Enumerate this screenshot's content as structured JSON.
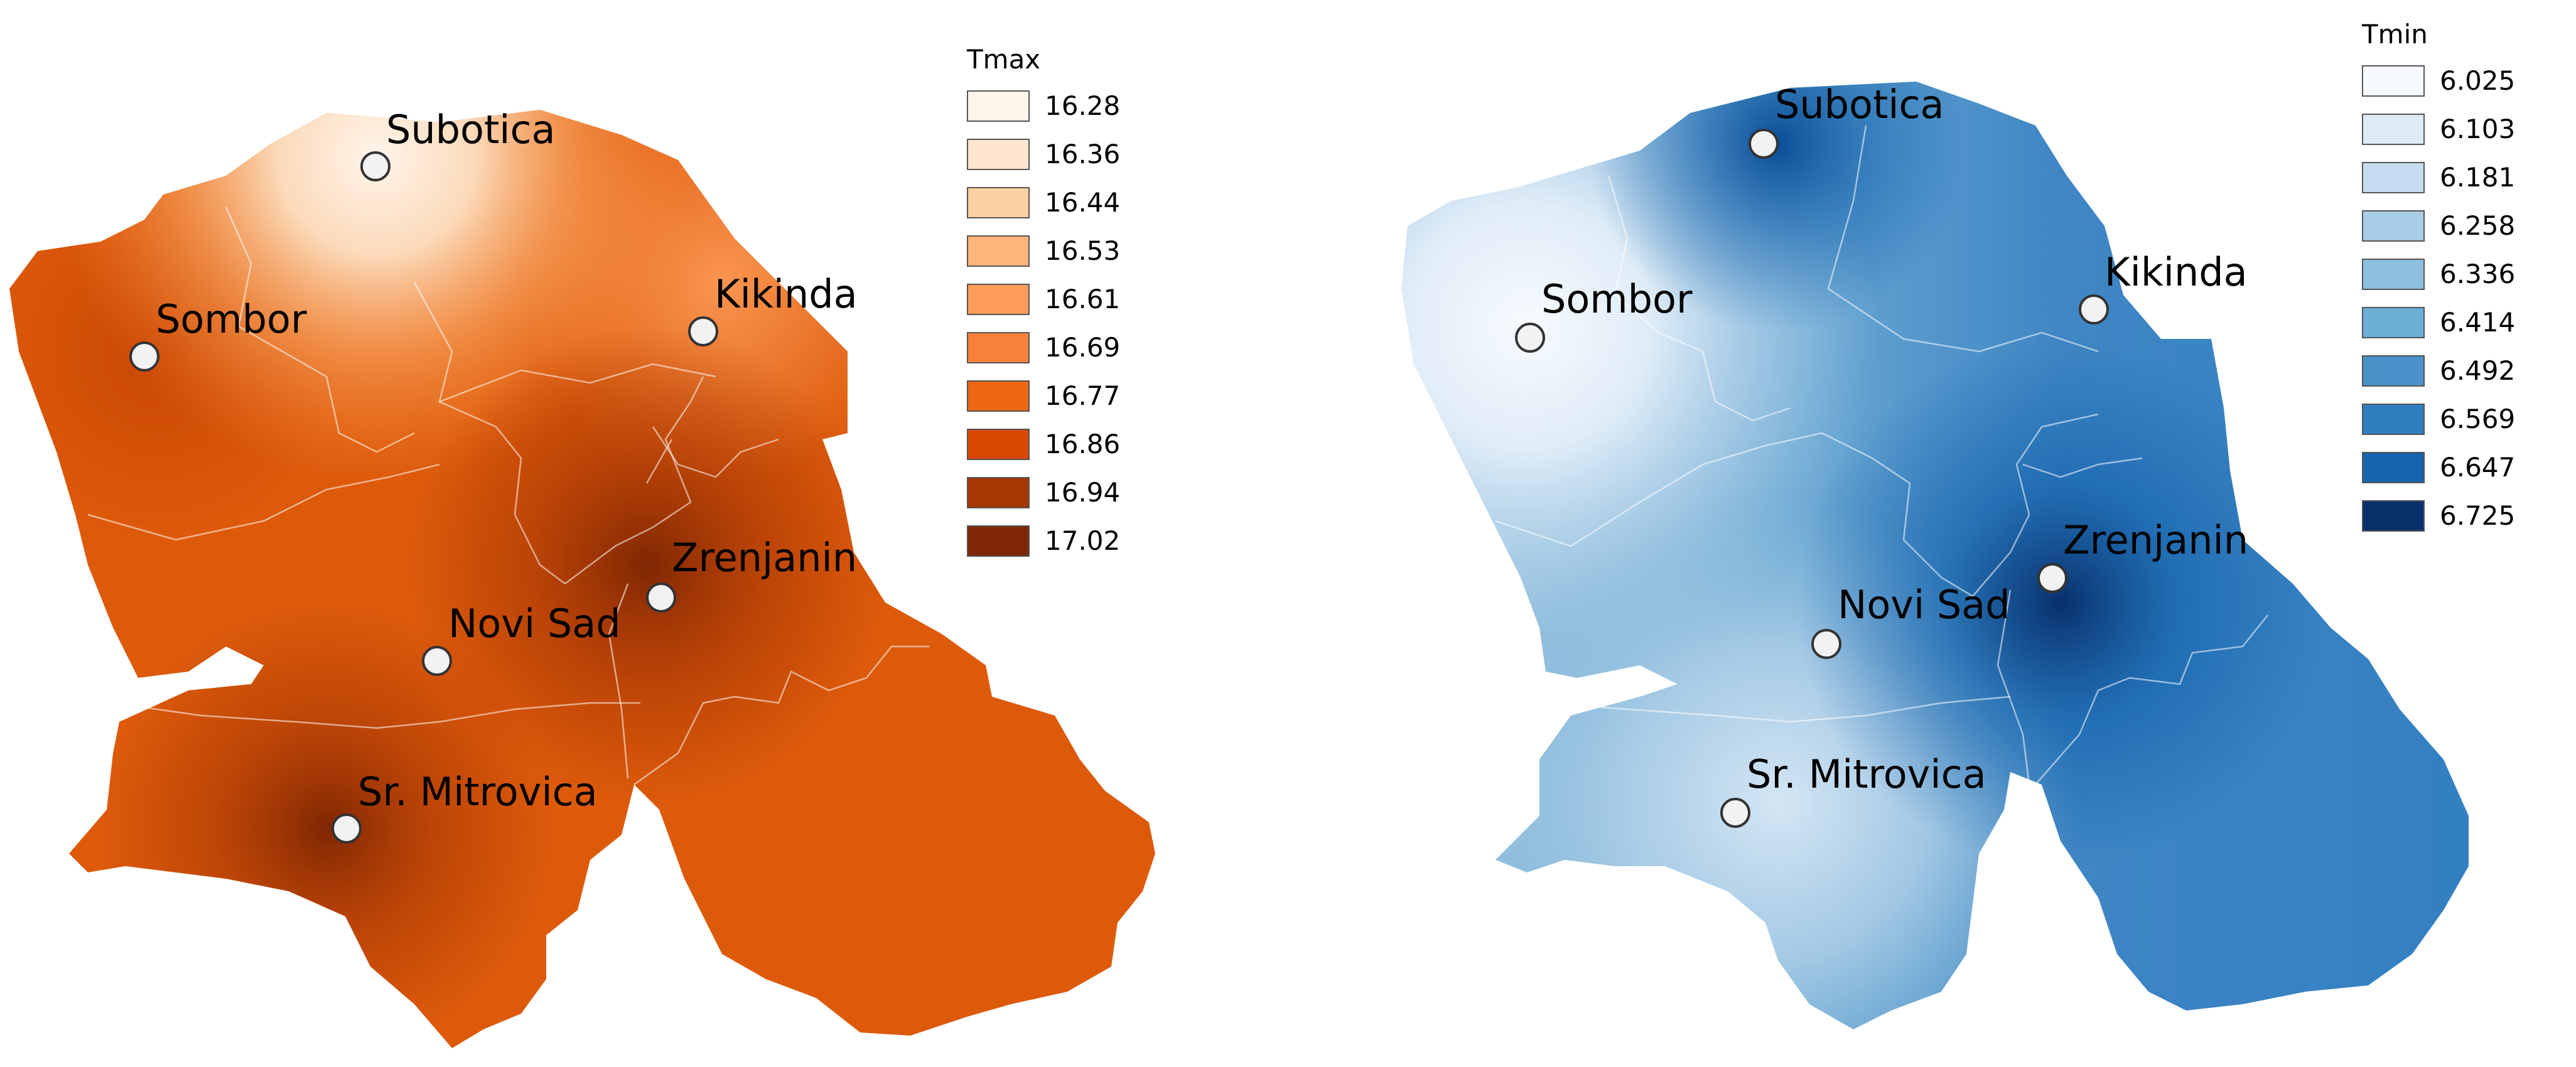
{
  "maps": [
    {
      "legend_title": "Tmax",
      "legend": [
        {
          "label": "16.28",
          "color": "#fff5eb"
        },
        {
          "label": "16.36",
          "color": "#fee6ce"
        },
        {
          "label": "16.44",
          "color": "#fdd0a2"
        },
        {
          "label": "16.53",
          "color": "#fdb57a"
        },
        {
          "label": "16.61",
          "color": "#fd9c58"
        },
        {
          "label": "16.69",
          "color": "#f9803a"
        },
        {
          "label": "16.77",
          "color": "#ec6614"
        },
        {
          "label": "16.86",
          "color": "#d94801"
        },
        {
          "label": "16.94",
          "color": "#a63603"
        },
        {
          "label": "17.02",
          "color": "#7f2704"
        }
      ],
      "cities": [
        "Subotica",
        "Sombor",
        "Kikinda",
        "Zrenjanin",
        "Novi Sad",
        "Sr. Mitrovica"
      ]
    },
    {
      "legend_title": "Tmin",
      "legend": [
        {
          "label": "6.025",
          "color": "#f7fbff"
        },
        {
          "label": "6.103",
          "color": "#deebf7"
        },
        {
          "label": "6.181",
          "color": "#c6dbef"
        },
        {
          "label": "6.258",
          "color": "#a8cde6"
        },
        {
          "label": "6.336",
          "color": "#8cbfe0"
        },
        {
          "label": "6.414",
          "color": "#6baed6"
        },
        {
          "label": "6.492",
          "color": "#4a93c8"
        },
        {
          "label": "6.569",
          "color": "#2f7ec0"
        },
        {
          "label": "6.647",
          "color": "#1664ad"
        },
        {
          "label": "6.725",
          "color": "#08306b"
        }
      ],
      "cities": [
        "Subotica",
        "Sombor",
        "Kikinda",
        "Zrenjanin",
        "Novi Sad",
        "Sr. Mitrovica"
      ]
    }
  ]
}
